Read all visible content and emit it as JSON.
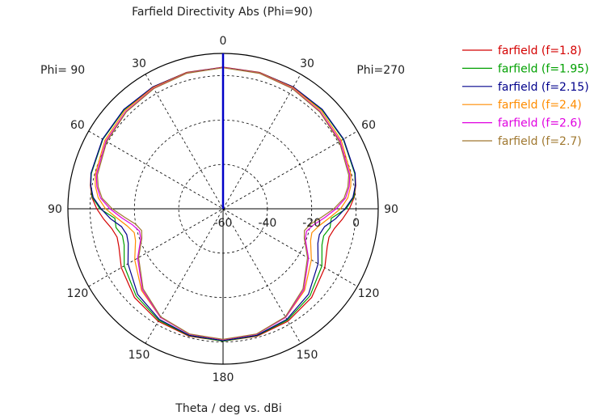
{
  "chart_data": {
    "type": "polar-line",
    "title": "Farfield Directivity Abs (Phi=90)",
    "xlabel": "Theta / deg vs. dBi",
    "left_label": "Phi= 90",
    "right_label": "Phi=270",
    "angle_labels": [
      {
        "theta": 0,
        "text": "0"
      },
      {
        "theta": 30,
        "text": "30"
      },
      {
        "theta": 60,
        "text": "60"
      },
      {
        "theta": 90,
        "text": "90"
      },
      {
        "theta": 120,
        "text": "120"
      },
      {
        "theta": 150,
        "text": "150"
      },
      {
        "theta": 180,
        "text": "180"
      },
      {
        "theta": -150,
        "text": "150"
      },
      {
        "theta": -120,
        "text": "120"
      },
      {
        "theta": -90,
        "text": "90"
      },
      {
        "theta": -60,
        "text": "60"
      },
      {
        "theta": -30,
        "text": "30"
      }
    ],
    "radial_ticks": [
      {
        "value": -60,
        "text": "-60"
      },
      {
        "value": -40,
        "text": "-40"
      },
      {
        "value": -20,
        "text": "-20"
      },
      {
        "value": 0,
        "text": "0"
      }
    ],
    "r_range": [
      -60,
      10
    ],
    "angle_grid_step": 30,
    "grid": true,
    "legend_position": "top-right",
    "theta_deg": [
      0,
      15,
      30,
      45,
      60,
      75,
      80,
      85,
      90,
      95,
      100,
      105,
      110,
      120,
      135,
      150,
      165,
      180
    ],
    "series": [
      {
        "name": "farfield (f=1.8)",
        "color": "#d40000",
        "values": [
          3.8,
          3.6,
          3.4,
          3.2,
          2.7,
          1.6,
          0.8,
          -0.6,
          -3,
          -6,
          -9,
          -10.5,
          -10,
          -7,
          -3.5,
          -1.5,
          -0.6,
          -0.4
        ]
      },
      {
        "name": "farfield (f=1.95)",
        "color": "#00a000",
        "values": [
          3.7,
          3.5,
          3.3,
          3.1,
          2.6,
          1.5,
          0.6,
          -0.8,
          -4.5,
          -11,
          -11,
          -13,
          -12.5,
          -8.5,
          -4.5,
          -2,
          -0.8,
          -0.4
        ]
      },
      {
        "name": "farfield (f=2.15)",
        "color": "#00008b",
        "values": [
          3.7,
          3.5,
          3.4,
          3.3,
          2.8,
          1.7,
          0.6,
          -1.2,
          -5,
          -9,
          -13.5,
          -15,
          -14.5,
          -10.5,
          -5.5,
          -2.5,
          -1,
          -0.6
        ]
      },
      {
        "name": "farfield (f=2.4)",
        "color": "#ff8c00",
        "values": [
          3.6,
          3.4,
          3.1,
          2.6,
          1.6,
          -0.3,
          -1.5,
          -3.5,
          -7,
          -12,
          -16,
          -18.5,
          -18,
          -14,
          -8,
          -3.5,
          -1.5,
          -1
        ]
      },
      {
        "name": "farfield (f=2.6)",
        "color": "#e000e0",
        "values": [
          3.7,
          3.3,
          2.7,
          2,
          1,
          -0.8,
          -2.2,
          -4.5,
          -9,
          -14,
          -18.5,
          -21,
          -20.5,
          -15.5,
          -8.5,
          -3.5,
          -1.5,
          -1.1
        ]
      },
      {
        "name": "farfield (f=2.7)",
        "color": "#a07830",
        "values": [
          3.6,
          3.2,
          2.5,
          1.7,
          0.6,
          -1.3,
          -2.8,
          -5.2,
          -10,
          -15.5,
          -20,
          -22,
          -21,
          -16,
          -9,
          -3.8,
          -1.6,
          -1.2
        ]
      }
    ]
  }
}
